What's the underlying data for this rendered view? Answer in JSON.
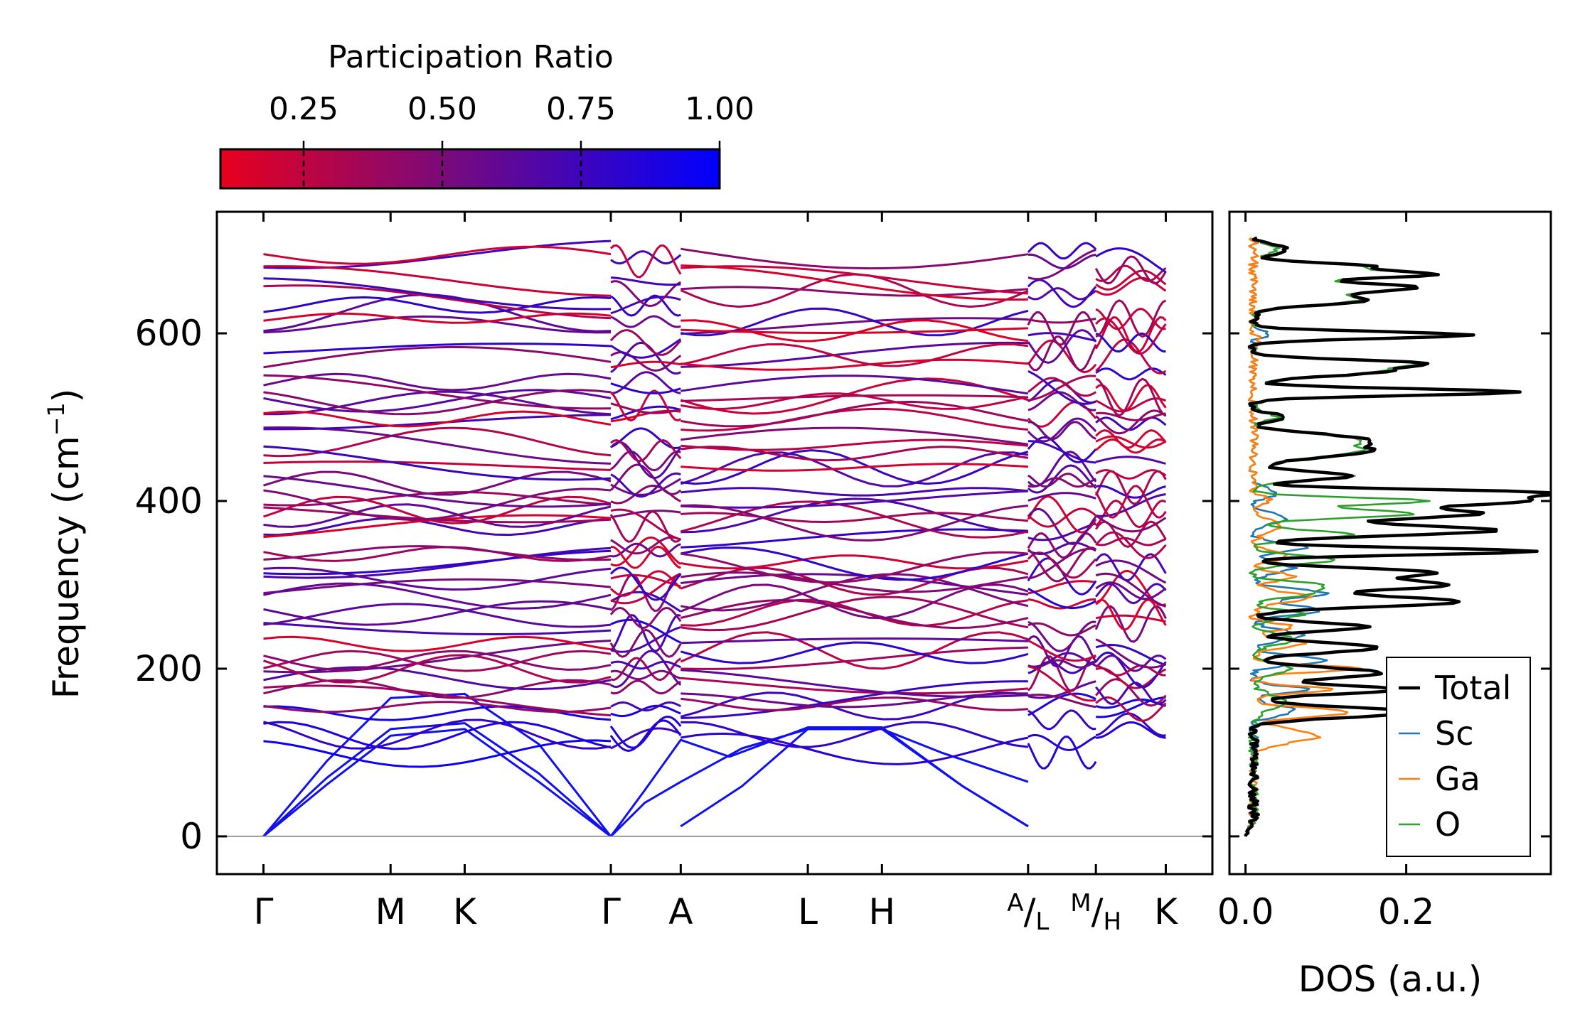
{
  "chart_data": [
    {
      "type": "line",
      "title": "",
      "xlabel": "",
      "ylabel": "Frequency (cm",
      "ylabel_sup": "−1",
      "ylabel_tail": ")",
      "ylim": [
        -45,
        745
      ],
      "yticks": [
        0,
        200,
        400,
        600
      ],
      "path_ticks": [
        {
          "label": "Γ",
          "x": 0.0
        },
        {
          "label": "M",
          "x": 0.3
        },
        {
          "label": "K",
          "x": 0.475
        },
        {
          "label": "Γ",
          "x": 0.82
        },
        {
          "label": "A",
          "x": 0.985
        },
        {
          "label": "L",
          "x": 1.285
        },
        {
          "label": "H",
          "x": 1.46
        },
        {
          "label": "A",
          "sub": "L",
          "x": 1.805
        },
        {
          "label": "M",
          "sub": "H",
          "x": 1.965
        },
        {
          "label": "K",
          "x": 2.13
        }
      ],
      "segments": [
        [
          0.0,
          0.82
        ],
        [
          0.82,
          0.985
        ],
        [
          0.985,
          1.805
        ],
        [
          1.805,
          1.965
        ],
        [
          1.965,
          2.13
        ]
      ],
      "xlim": [
        -0.11,
        2.24
      ],
      "acoustic_branches": [
        {
          "name": "acoustic-1",
          "points": [
            [
              0,
              0
            ],
            [
              0.15,
              62
            ],
            [
              0.3,
              120
            ],
            [
              0.475,
              128
            ],
            [
              0.65,
              65
            ],
            [
              0.82,
              0
            ]
          ]
        },
        {
          "name": "acoustic-2",
          "points": [
            [
              0,
              0
            ],
            [
              0.15,
              70
            ],
            [
              0.3,
              128
            ],
            [
              0.475,
              135
            ],
            [
              0.65,
              75
            ],
            [
              0.82,
              0
            ]
          ]
        },
        {
          "name": "acoustic-3",
          "points": [
            [
              0,
              0
            ],
            [
              0.15,
              90
            ],
            [
              0.3,
              165
            ],
            [
              0.475,
              170
            ],
            [
              0.65,
              110
            ],
            [
              0.82,
              0
            ]
          ]
        },
        {
          "name": "acoustic-A-1",
          "points": [
            [
              0.82,
              0
            ],
            [
              0.9,
              40
            ],
            [
              0.985,
              65
            ],
            [
              1.13,
              105
            ],
            [
              1.285,
              128
            ],
            [
              1.46,
              128
            ],
            [
              1.6,
              100
            ],
            [
              1.805,
              65
            ]
          ]
        },
        {
          "name": "acoustic-A-2",
          "points": [
            [
              0.82,
              0
            ],
            [
              0.9,
              55
            ],
            [
              0.985,
              115
            ],
            [
              1.1,
              95
            ],
            [
              1.285,
              130
            ],
            [
              1.46,
              130
            ],
            [
              1.65,
              60
            ],
            [
              1.805,
              12
            ]
          ]
        },
        {
          "name": "acoustic-A-3",
          "points": [
            [
              0.985,
              12
            ],
            [
              1.13,
              60
            ],
            [
              1.285,
              128
            ],
            [
              1.46,
              128
            ],
            [
              1.65,
              60
            ],
            [
              1.805,
              12
            ]
          ]
        }
      ],
      "optical_branch_baselines": [
        110,
        128,
        135,
        148,
        160,
        172,
        180,
        192,
        200,
        205,
        212,
        225,
        240,
        255,
        262,
        275,
        282,
        290,
        300,
        312,
        322,
        332,
        340,
        350,
        362,
        372,
        380,
        392,
        400,
        412,
        420,
        432,
        440,
        455,
        468,
        478,
        490,
        500,
        512,
        520,
        528,
        540,
        552,
        562,
        572,
        595,
        600,
        612,
        625,
        648,
        660,
        672,
        685,
        698
      ],
      "colorbar": {
        "label": "Participation Ratio",
        "range": [
          0.1,
          1.0
        ],
        "ticks": [
          "0.25",
          "0.50",
          "0.75",
          "1.00"
        ],
        "tick_values": [
          0.25,
          0.5,
          0.75,
          1.0
        ],
        "color_low": "#e8001e",
        "color_mid": "#7a0a7a",
        "color_high": "#0000ff"
      }
    },
    {
      "type": "line",
      "title": "",
      "xlabel": "DOS (a.u.)",
      "ylabel": "",
      "xlim": [
        -0.02,
        0.38
      ],
      "ylim": [
        -45,
        745
      ],
      "xticks": [
        {
          "value": 0.0,
          "label": "0.0"
        },
        {
          "value": 0.2,
          "label": "0.2"
        }
      ],
      "legend_position": "bottom-right",
      "series": [
        {
          "name": "Total",
          "color": "#000000",
          "width": 4.5,
          "peaks": [
            [
              148,
              0.2,
              6
            ],
            [
              175,
              0.18,
              5
            ],
            [
              195,
              0.16,
              6
            ],
            [
              225,
              0.15,
              6
            ],
            [
              250,
              0.14,
              5
            ],
            [
              280,
              0.26,
              6
            ],
            [
              300,
              0.24,
              6
            ],
            [
              315,
              0.22,
              5
            ],
            [
              340,
              0.35,
              4
            ],
            [
              365,
              0.3,
              6
            ],
            [
              385,
              0.28,
              6
            ],
            [
              400,
              0.32,
              5
            ],
            [
              410,
              0.33,
              4
            ],
            [
              430,
              0.12,
              5
            ],
            [
              460,
              0.14,
              8
            ],
            [
              475,
              0.11,
              6
            ],
            [
              500,
              0.04,
              4
            ],
            [
              530,
              0.33,
              4
            ],
            [
              555,
              0.16,
              6
            ],
            [
              565,
              0.17,
              4
            ],
            [
              598,
              0.27,
              4
            ],
            [
              640,
              0.14,
              6
            ],
            [
              655,
              0.2,
              5
            ],
            [
              670,
              0.22,
              4
            ],
            [
              680,
              0.14,
              4
            ],
            [
              700,
              0.04,
              6
            ]
          ]
        },
        {
          "name": "Sc",
          "color": "#1f77b4",
          "width": 2.6,
          "peaks": [
            [
              150,
              0.05,
              6
            ],
            [
              175,
              0.07,
              4
            ],
            [
              210,
              0.09,
              5
            ],
            [
              240,
              0.06,
              6
            ],
            [
              270,
              0.08,
              6
            ],
            [
              290,
              0.09,
              5
            ],
            [
              320,
              0.05,
              6
            ],
            [
              345,
              0.07,
              5
            ],
            [
              380,
              0.04,
              6
            ],
            [
              410,
              0.03,
              5
            ],
            [
              600,
              0.02,
              4
            ]
          ]
        },
        {
          "name": "Ga",
          "color": "#ff7f0e",
          "width": 2.6,
          "peaks": [
            [
              120,
              0.08,
              8
            ],
            [
              148,
              0.12,
              5
            ],
            [
              175,
              0.1,
              4
            ],
            [
              200,
              0.13,
              4
            ],
            [
              230,
              0.06,
              5
            ],
            [
              250,
              0.05,
              4
            ],
            [
              285,
              0.07,
              6
            ],
            [
              310,
              0.05,
              5
            ],
            [
              335,
              0.04,
              6
            ],
            [
              370,
              0.03,
              8
            ],
            [
              400,
              0.02,
              5
            ],
            [
              590,
              0.01,
              4
            ]
          ]
        },
        {
          "name": "O",
          "color": "#2ca02c",
          "width": 2.6,
          "peaks": [
            [
              160,
              0.04,
              8
            ],
            [
              200,
              0.05,
              6
            ],
            [
              235,
              0.05,
              6
            ],
            [
              265,
              0.06,
              5
            ],
            [
              290,
              0.07,
              5
            ],
            [
              300,
              0.08,
              4
            ],
            [
              330,
              0.1,
              5
            ],
            [
              360,
              0.12,
              5
            ],
            [
              385,
              0.2,
              5
            ],
            [
              400,
              0.22,
              4
            ],
            [
              430,
              0.12,
              5
            ],
            [
              460,
              0.13,
              8
            ],
            [
              475,
              0.1,
              6
            ],
            [
              500,
              0.03,
              4
            ],
            [
              530,
              0.31,
              4
            ],
            [
              555,
              0.15,
              6
            ],
            [
              565,
              0.16,
              4
            ],
            [
              598,
              0.26,
              4
            ],
            [
              640,
              0.13,
              6
            ],
            [
              655,
              0.19,
              5
            ],
            [
              670,
              0.21,
              4
            ],
            [
              680,
              0.13,
              4
            ],
            [
              700,
              0.03,
              6
            ]
          ]
        }
      ]
    }
  ]
}
